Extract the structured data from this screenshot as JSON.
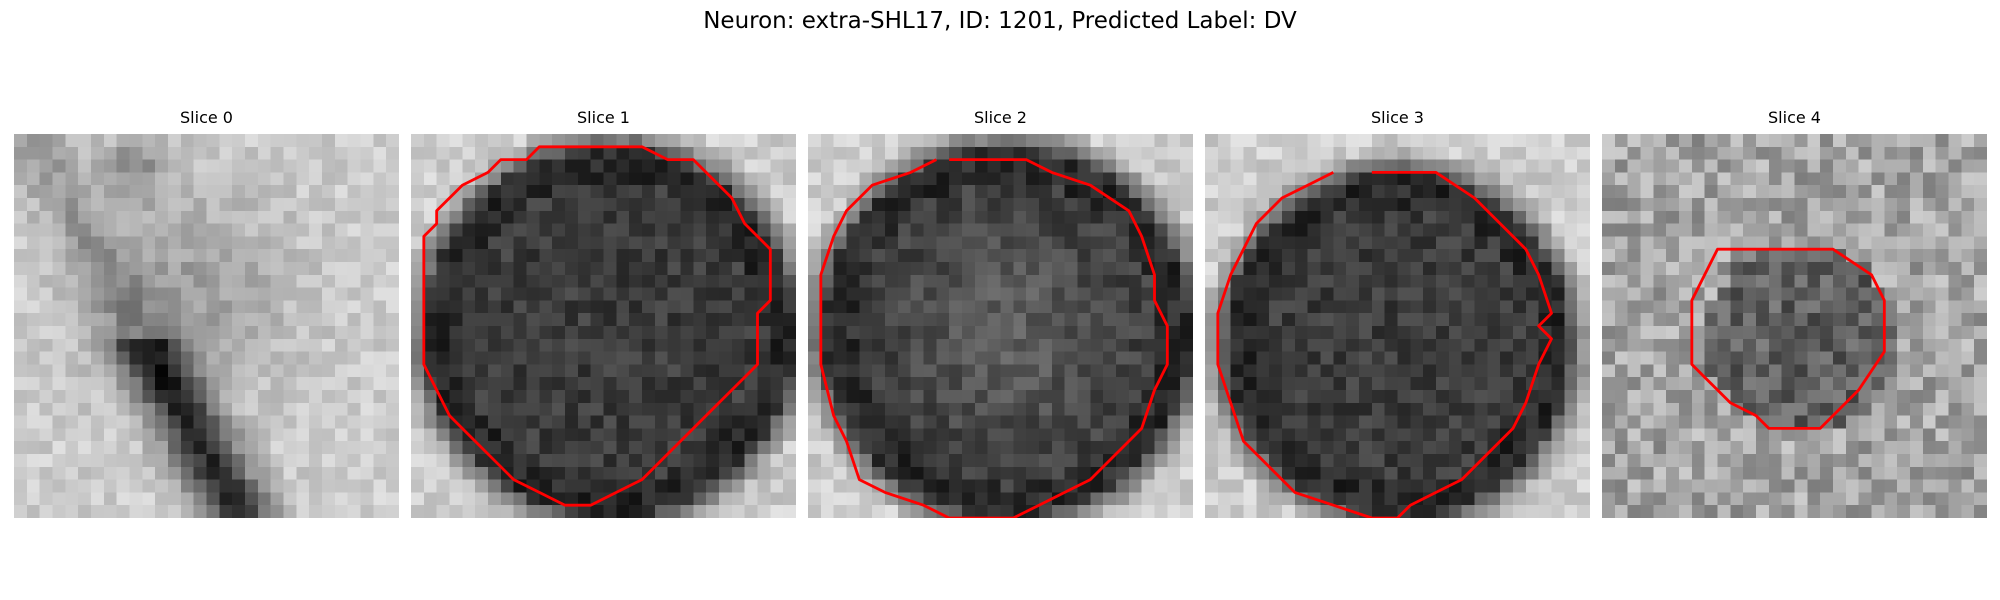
{
  "figure": {
    "title": "Neuron: extra-SHL17, ID: 1201, Predicted Label: DV"
  },
  "colors": {
    "contour": "#ff0000",
    "background": "#ffffff",
    "text": "#000000"
  },
  "slices": [
    {
      "label": "Slice 0",
      "has_contour": false,
      "image": "grayscale-em-patch-bright-with-dark-diagonal-band"
    },
    {
      "label": "Slice 1",
      "has_contour": true,
      "image": "grayscale-em-patch-dark-round-cell-body"
    },
    {
      "label": "Slice 2",
      "has_contour": true,
      "image": "grayscale-em-patch-dark-round-cell-body"
    },
    {
      "label": "Slice 3",
      "has_contour": true,
      "image": "grayscale-em-patch-dark-round-cell-body"
    },
    {
      "label": "Slice 4",
      "has_contour": true,
      "image": "grayscale-noisy-patch-small-dark-cell"
    }
  ]
}
